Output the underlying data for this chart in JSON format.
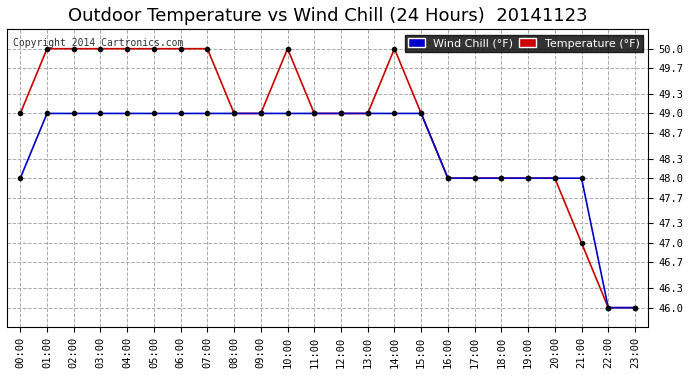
{
  "title": "Outdoor Temperature vs Wind Chill (24 Hours)  20141123",
  "copyright": "Copyright 2014 Cartronics.com",
  "background_color": "#ffffff",
  "plot_bg_color": "#ffffff",
  "grid_color": "#aaaaaa",
  "x_labels": [
    "00:00",
    "01:00",
    "02:00",
    "03:00",
    "04:00",
    "05:00",
    "06:00",
    "07:00",
    "08:00",
    "09:00",
    "10:00",
    "11:00",
    "12:00",
    "13:00",
    "14:00",
    "15:00",
    "16:00",
    "17:00",
    "18:00",
    "19:00",
    "20:00",
    "21:00",
    "22:00",
    "23:00"
  ],
  "temperature_data": {
    "x": [
      0,
      1,
      2,
      3,
      4,
      5,
      6,
      7,
      8,
      9,
      10,
      11,
      12,
      13,
      14,
      15,
      16,
      17,
      18,
      19,
      20,
      21,
      22,
      23
    ],
    "y": [
      49.0,
      50.0,
      50.0,
      50.0,
      50.0,
      50.0,
      50.0,
      50.0,
      49.0,
      49.0,
      50.0,
      49.0,
      49.0,
      49.0,
      50.0,
      49.0,
      48.0,
      48.0,
      48.0,
      48.0,
      48.0,
      47.0,
      46.0,
      46.0
    ],
    "color": "#cc0000",
    "label": "Temperature (°F)"
  },
  "wind_chill_data": {
    "x": [
      0,
      1,
      2,
      3,
      4,
      5,
      6,
      7,
      8,
      9,
      10,
      11,
      12,
      13,
      14,
      15,
      16,
      17,
      18,
      19,
      20,
      21,
      22,
      23
    ],
    "y": [
      48.0,
      49.0,
      49.0,
      49.0,
      49.0,
      49.0,
      49.0,
      49.0,
      49.0,
      49.0,
      49.0,
      49.0,
      49.0,
      49.0,
      49.0,
      49.0,
      48.0,
      48.0,
      48.0,
      48.0,
      48.0,
      48.0,
      46.0,
      46.0
    ],
    "color": "#0000cc",
    "label": "Wind Chill (°F)"
  },
  "ylim": [
    45.7,
    50.3
  ],
  "yticks": [
    46.0,
    46.3,
    46.7,
    47.0,
    47.3,
    47.7,
    48.0,
    48.3,
    48.7,
    49.0,
    49.3,
    49.7,
    50.0
  ],
  "title_fontsize": 13,
  "copyright_fontsize": 7,
  "legend_fontsize": 8,
  "tick_fontsize": 7.5
}
